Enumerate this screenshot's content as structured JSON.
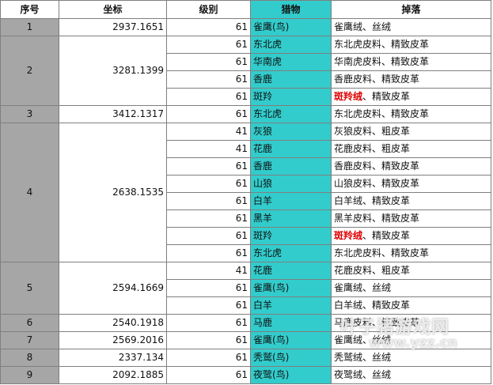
{
  "headers": [
    "序号",
    "坐标",
    "级别",
    "猎物",
    "掉落"
  ],
  "groups": [
    {
      "seq": "1",
      "coord": "2937.1651",
      "rows": [
        {
          "level": "61",
          "prey": "雀鹰(鸟)",
          "drop": [
            {
              "t": "雀鹰绒、丝绒",
              "hl": false
            }
          ]
        }
      ]
    },
    {
      "seq": "2",
      "coord": "3281.1399",
      "rows": [
        {
          "level": "61",
          "prey": "东北虎",
          "drop": [
            {
              "t": "东北虎皮料、精致皮革",
              "hl": false
            }
          ]
        },
        {
          "level": "61",
          "prey": "华南虎",
          "drop": [
            {
              "t": "华南虎皮料、精致皮革",
              "hl": false
            }
          ]
        },
        {
          "level": "61",
          "prey": "香鹿",
          "drop": [
            {
              "t": "香鹿皮料、精致皮革",
              "hl": false
            }
          ]
        },
        {
          "level": "61",
          "prey": "斑羚",
          "drop": [
            {
              "t": "斑羚绒",
              "hl": true
            },
            {
              "t": "、精致皮革",
              "hl": false
            }
          ]
        }
      ]
    },
    {
      "seq": "3",
      "coord": "3412.1317",
      "rows": [
        {
          "level": "61",
          "prey": "东北虎",
          "drop": [
            {
              "t": "东北虎皮料、精致皮革",
              "hl": false
            }
          ]
        }
      ]
    },
    {
      "seq": "4",
      "coord": "2638.1535",
      "rows": [
        {
          "level": "41",
          "prey": "灰狼",
          "drop": [
            {
              "t": "灰狼皮料、粗皮革",
              "hl": false
            }
          ]
        },
        {
          "level": "41",
          "prey": "花鹿",
          "drop": [
            {
              "t": "花鹿皮料、粗皮革",
              "hl": false
            }
          ]
        },
        {
          "level": "61",
          "prey": "香鹿",
          "drop": [
            {
              "t": "香鹿皮料、精致皮革",
              "hl": false
            }
          ]
        },
        {
          "level": "61",
          "prey": "山狼",
          "drop": [
            {
              "t": "山狼皮料、精致皮革",
              "hl": false
            }
          ]
        },
        {
          "level": "61",
          "prey": "白羊",
          "drop": [
            {
              "t": "白羊绒、精致皮革",
              "hl": false
            }
          ]
        },
        {
          "level": "61",
          "prey": "黑羊",
          "drop": [
            {
              "t": "黑羊皮料、精致皮革",
              "hl": false
            }
          ]
        },
        {
          "level": "61",
          "prey": "斑羚",
          "drop": [
            {
              "t": "斑羚绒",
              "hl": true
            },
            {
              "t": "、精致皮革",
              "hl": false
            }
          ]
        },
        {
          "level": "61",
          "prey": "东北虎",
          "drop": [
            {
              "t": "东北虎皮料、精致皮革",
              "hl": false
            }
          ]
        }
      ]
    },
    {
      "seq": "5",
      "coord": "2594.1669",
      "rows": [
        {
          "level": "41",
          "prey": "花鹿",
          "drop": [
            {
              "t": "花鹿皮料、粗皮革",
              "hl": false
            }
          ]
        },
        {
          "level": "61",
          "prey": "雀鹰(鸟)",
          "drop": [
            {
              "t": "雀鹰绒、丝绒",
              "hl": false
            }
          ]
        },
        {
          "level": "61",
          "prey": "白羊",
          "drop": [
            {
              "t": "白羊绒、精致皮革",
              "hl": false
            }
          ]
        }
      ]
    },
    {
      "seq": "6",
      "coord": "2540.1918",
      "rows": [
        {
          "level": "61",
          "prey": "马鹿",
          "drop": [
            {
              "t": "马鹿皮料、精致皮革",
              "hl": false
            }
          ]
        }
      ]
    },
    {
      "seq": "7",
      "coord": "2569.2016",
      "rows": [
        {
          "level": "61",
          "prey": "雀鹰(鸟)",
          "drop": [
            {
              "t": "雀鹰绒、丝绒",
              "hl": false
            }
          ]
        }
      ]
    },
    {
      "seq": "8",
      "coord": "2337.134",
      "rows": [
        {
          "level": "61",
          "prey": "秃鹫(鸟)",
          "drop": [
            {
              "t": "秃鹫绒、丝绒",
              "hl": false
            }
          ]
        }
      ]
    },
    {
      "seq": "9",
      "coord": "2092.1885",
      "rows": [
        {
          "level": "61",
          "prey": "夜鹭(鸟)",
          "drop": [
            {
              "t": "夜鹭绒、丝绒",
              "hl": false
            }
          ]
        }
      ]
    }
  ],
  "watermark": {
    "line1": "叶子猪游戏网",
    "line2": "www.yzz.cn"
  },
  "colors": {
    "prey_column": "#33cccc",
    "seq_column": "#a6a6a6",
    "highlight": "#e00000",
    "border": "#7f7f7f"
  }
}
